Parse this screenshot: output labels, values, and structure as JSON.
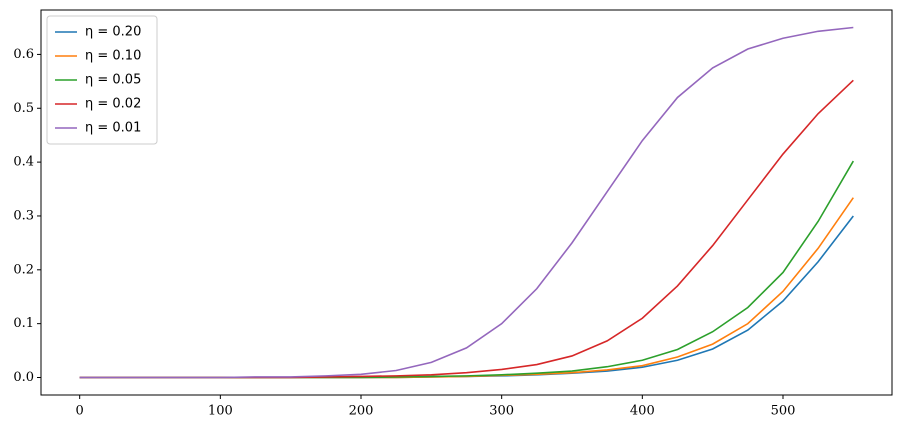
{
  "chart_data": {
    "type": "line",
    "x": [
      0,
      25,
      50,
      75,
      100,
      125,
      150,
      175,
      200,
      225,
      250,
      275,
      300,
      325,
      350,
      375,
      400,
      425,
      450,
      475,
      500,
      525,
      550
    ],
    "series": [
      {
        "name": "η = 0.20",
        "color": "#1f77b4",
        "values": [
          0,
          0,
          0,
          0,
          0,
          0,
          0,
          0,
          0,
          0,
          0.001,
          0.002,
          0.003,
          0.005,
          0.008,
          0.012,
          0.019,
          0.032,
          0.053,
          0.088,
          0.142,
          0.215,
          0.3
        ]
      },
      {
        "name": "η = 0.10",
        "color": "#ff7f0e",
        "values": [
          0,
          0,
          0,
          0,
          0,
          0,
          0,
          0,
          0,
          0,
          0.001,
          0.002,
          0.004,
          0.006,
          0.009,
          0.014,
          0.022,
          0.038,
          0.062,
          0.1,
          0.16,
          0.24,
          0.334
        ]
      },
      {
        "name": "η = 0.05",
        "color": "#2ca02c",
        "values": [
          0,
          0,
          0,
          0,
          0,
          0,
          0,
          0,
          0,
          0.001,
          0.002,
          0.003,
          0.005,
          0.008,
          0.012,
          0.02,
          0.032,
          0.052,
          0.085,
          0.13,
          0.195,
          0.29,
          0.402
        ]
      },
      {
        "name": "η = 0.02",
        "color": "#d62728",
        "values": [
          0,
          0,
          0,
          0,
          0,
          0,
          0,
          0.001,
          0.002,
          0.003,
          0.005,
          0.009,
          0.015,
          0.024,
          0.04,
          0.068,
          0.11,
          0.17,
          0.245,
          0.33,
          0.415,
          0.49,
          0.552
        ]
      },
      {
        "name": "η = 0.01",
        "color": "#9467bd",
        "values": [
          0,
          0,
          0,
          0,
          0,
          0.001,
          0.001,
          0.003,
          0.006,
          0.013,
          0.028,
          0.055,
          0.1,
          0.165,
          0.25,
          0.345,
          0.44,
          0.52,
          0.575,
          0.61,
          0.63,
          0.643,
          0.65
        ]
      }
    ],
    "xlim": [
      -27.5,
      577.5
    ],
    "xticks": [
      0,
      100,
      200,
      300,
      400,
      500
    ],
    "ylim": [
      -0.0325,
      0.6825
    ],
    "yticks": [
      {
        "value": 0,
        "label": "0.0"
      },
      0.1,
      0.2,
      0.3,
      0.4,
      0.5,
      0.6
    ],
    "legend": "upper left"
  }
}
